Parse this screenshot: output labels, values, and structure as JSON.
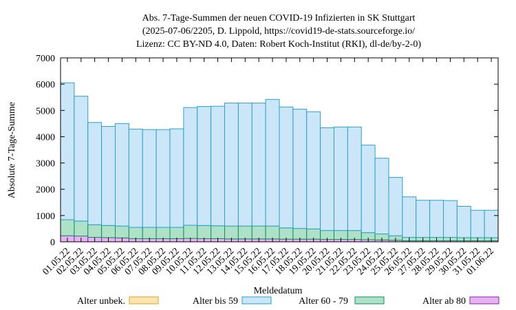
{
  "chart_data": {
    "type": "bar",
    "stacked": true,
    "title": [
      "Abs. 7-Tage-Summen der neuen COVID-19 Infizierten in SK Stuttgart",
      "(2025-07-06/2205, D. Lippold, https://covid19-de-stats.sourceforge.io/",
      "Lizenz: CC BY-ND 4.0, Daten: Robert Koch-Institut (RKI), dl-de/by-2-0)"
    ],
    "xlabel": "Meldedatum",
    "ylabel": "Absolute 7-Tage-Summe",
    "ylim": [
      0,
      7000
    ],
    "yticks": [
      0,
      1000,
      2000,
      3000,
      4000,
      5000,
      6000,
      7000
    ],
    "categories": [
      "01.05.22",
      "02.05.22",
      "03.05.22",
      "04.05.22",
      "05.05.22",
      "06.05.22",
      "07.05.22",
      "08.05.22",
      "09.05.22",
      "10.05.22",
      "11.05.22",
      "12.05.22",
      "13.05.22",
      "14.05.22",
      "15.05.22",
      "16.05.22",
      "17.05.22",
      "18.05.22",
      "19.05.22",
      "20.05.22",
      "21.05.22",
      "22.05.22",
      "23.05.22",
      "24.05.22",
      "25.05.22",
      "26.05.22",
      "27.05.22",
      "28.05.22",
      "29.05.22",
      "30.05.22",
      "31.05.22",
      "01.06.22"
    ],
    "legend_position": "bottom",
    "series": [
      {
        "name": "Alter unbek.",
        "fill": "#fde5b0",
        "stroke": "#e0a020",
        "values": [
          0,
          0,
          0,
          0,
          0,
          0,
          0,
          0,
          0,
          0,
          0,
          0,
          0,
          0,
          0,
          0,
          0,
          0,
          0,
          0,
          0,
          0,
          0,
          0,
          0,
          0,
          0,
          0,
          0,
          0,
          0,
          0
        ]
      },
      {
        "name": "Alter ab 80",
        "fill": "#e6b3f0",
        "stroke": "#8a1fb0",
        "values": [
          230,
          220,
          170,
          160,
          150,
          120,
          120,
          120,
          120,
          130,
          120,
          120,
          110,
          110,
          110,
          110,
          100,
          100,
          100,
          90,
          90,
          90,
          80,
          70,
          60,
          40,
          40,
          40,
          40,
          40,
          40,
          40
        ]
      },
      {
        "name": "Alter 60 - 79",
        "fill": "#aee2c8",
        "stroke": "#178a5a",
        "values": [
          610,
          570,
          480,
          460,
          450,
          430,
          430,
          430,
          430,
          500,
          500,
          490,
          490,
          490,
          490,
          490,
          430,
          410,
          390,
          340,
          340,
          340,
          270,
          230,
          170,
          130,
          130,
          130,
          130,
          120,
          120,
          120
        ]
      },
      {
        "name": "Alter bis 59",
        "fill": "#cbe6f8",
        "stroke": "#2a9fd0",
        "values": [
          5210,
          4750,
          3890,
          3770,
          3900,
          3740,
          3720,
          3720,
          3750,
          4480,
          4530,
          4550,
          4680,
          4680,
          4680,
          4820,
          4600,
          4540,
          4460,
          3910,
          3940,
          3940,
          3330,
          2880,
          2220,
          1540,
          1410,
          1410,
          1400,
          1190,
          1040,
          1040
        ]
      }
    ]
  }
}
